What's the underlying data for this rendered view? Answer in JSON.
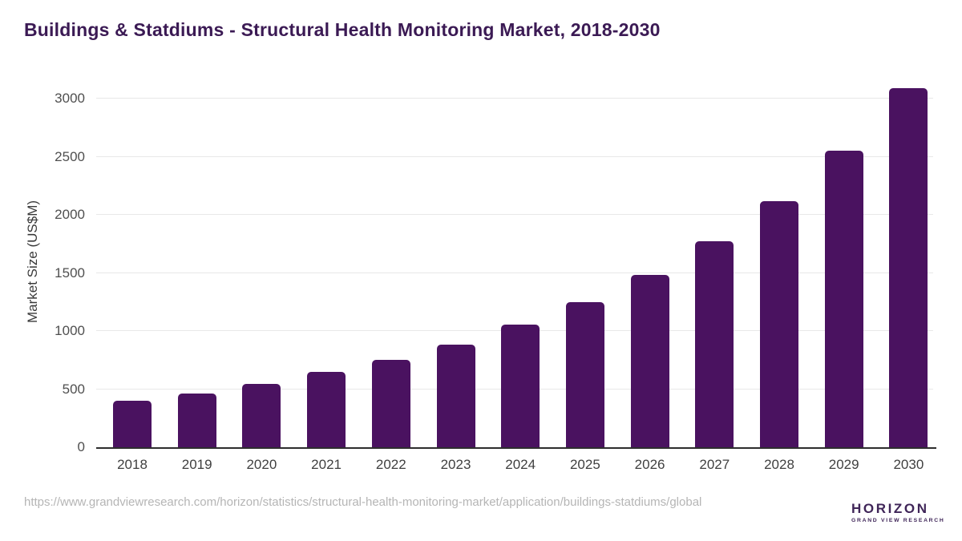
{
  "title": "Buildings & Statdiums - Structural Health Monitoring Market, 2018-2030",
  "chart_data": {
    "type": "bar",
    "title": "Buildings & Statdiums - Structural Health Monitoring Market, 2018-2030",
    "categories": [
      "2018",
      "2019",
      "2020",
      "2021",
      "2022",
      "2023",
      "2024",
      "2025",
      "2026",
      "2027",
      "2028",
      "2029",
      "2030"
    ],
    "values": [
      400,
      465,
      545,
      645,
      750,
      885,
      1055,
      1250,
      1485,
      1775,
      2115,
      2550,
      3090
    ],
    "unit": "US$M",
    "xlabel": "",
    "ylabel": "Market Size (US$M)",
    "ylim": [
      0,
      3000
    ],
    "yticks": [
      0,
      500,
      1000,
      1500,
      2000,
      2500,
      3000
    ],
    "grid": true,
    "legend": "none"
  },
  "footer": {
    "source_url": "https://www.grandviewresearch.com/horizon/statistics/structural-health-monitoring-market/application/buildings-statdiums/global",
    "logo": {
      "wordmark": "HORIZON",
      "subtitle": "GRAND VIEW RESEARCH",
      "icon": "horizon-sun-over-water-icon"
    }
  },
  "colors": {
    "title_text": "#3b1a54",
    "bar_fill": "#4a1260",
    "axis_line": "#2e2e2e",
    "gridline": "#e8e8e8",
    "tick_label": "#4f4f4f",
    "url_text": "#b5b5b5",
    "logo_dark": "#2c1a47",
    "logo_light_blue": "#54c4ef"
  }
}
